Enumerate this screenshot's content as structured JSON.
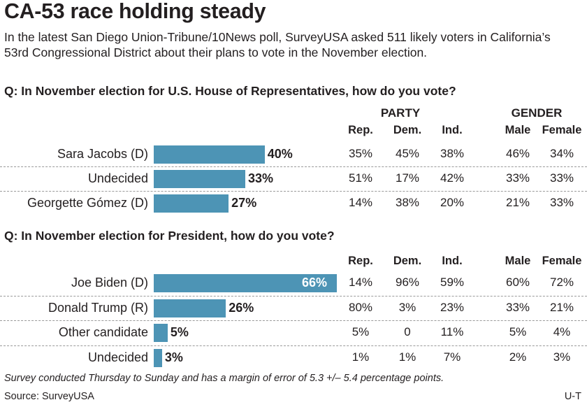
{
  "title": "CA-53 race holding steady",
  "intro": "In the latest San Diego Union-Tribune/10News poll, SurveyUSA asked 511 likely voters in California’s 53rd Congressional District about their plans to vote in the November election.",
  "colors": {
    "bar": "#4d94b5",
    "text": "#231f20",
    "divider": "#9a9a9a"
  },
  "chart_data": [
    {
      "type": "bar",
      "orientation": "horizontal",
      "title": "Q: In November election for U.S. House of Representatives, how do you vote?",
      "group_headers": [
        "PARTY",
        "GENDER"
      ],
      "columns": [
        "Rep.",
        "Dem.",
        "Ind.",
        "Male",
        "Female"
      ],
      "xlim": [
        0,
        100
      ],
      "rows": [
        {
          "label": "Sara Jacobs (D)",
          "value": 40,
          "value_label": "40%",
          "cells": [
            "35%",
            "45%",
            "38%",
            "46%",
            "34%"
          ]
        },
        {
          "label": "Undecided",
          "value": 33,
          "value_label": "33%",
          "cells": [
            "51%",
            "17%",
            "42%",
            "33%",
            "33%"
          ]
        },
        {
          "label": "Georgette Gómez (D)",
          "value": 27,
          "value_label": "27%",
          "cells": [
            "14%",
            "38%",
            "20%",
            "21%",
            "33%"
          ]
        }
      ]
    },
    {
      "type": "bar",
      "orientation": "horizontal",
      "title": "Q: In November election for President, how do you vote?",
      "group_headers": [],
      "columns": [
        "Rep.",
        "Dem.",
        "Ind.",
        "Male",
        "Female"
      ],
      "xlim": [
        0,
        100
      ],
      "rows": [
        {
          "label": "Joe Biden (D)",
          "value": 66,
          "value_label": "66%",
          "cells": [
            "14%",
            "96%",
            "59%",
            "60%",
            "72%"
          ]
        },
        {
          "label": "Donald Trump (R)",
          "value": 26,
          "value_label": "26%",
          "cells": [
            "80%",
            "3%",
            "23%",
            "33%",
            "21%"
          ]
        },
        {
          "label": "Other candidate",
          "value": 5,
          "value_label": "5%",
          "cells": [
            "5%",
            "0",
            "11%",
            "5%",
            "4%"
          ]
        },
        {
          "label": "Undecided",
          "value": 3,
          "value_label": "3%",
          "cells": [
            "1%",
            "1%",
            "7%",
            "2%",
            "3%"
          ]
        }
      ]
    }
  ],
  "footnote": "Survey conducted Thursday to Sunday and has a margin of error of 5.3 +/– 5.4 percentage points.",
  "source": "Source: SurveyUSA",
  "credit": "U-T"
}
